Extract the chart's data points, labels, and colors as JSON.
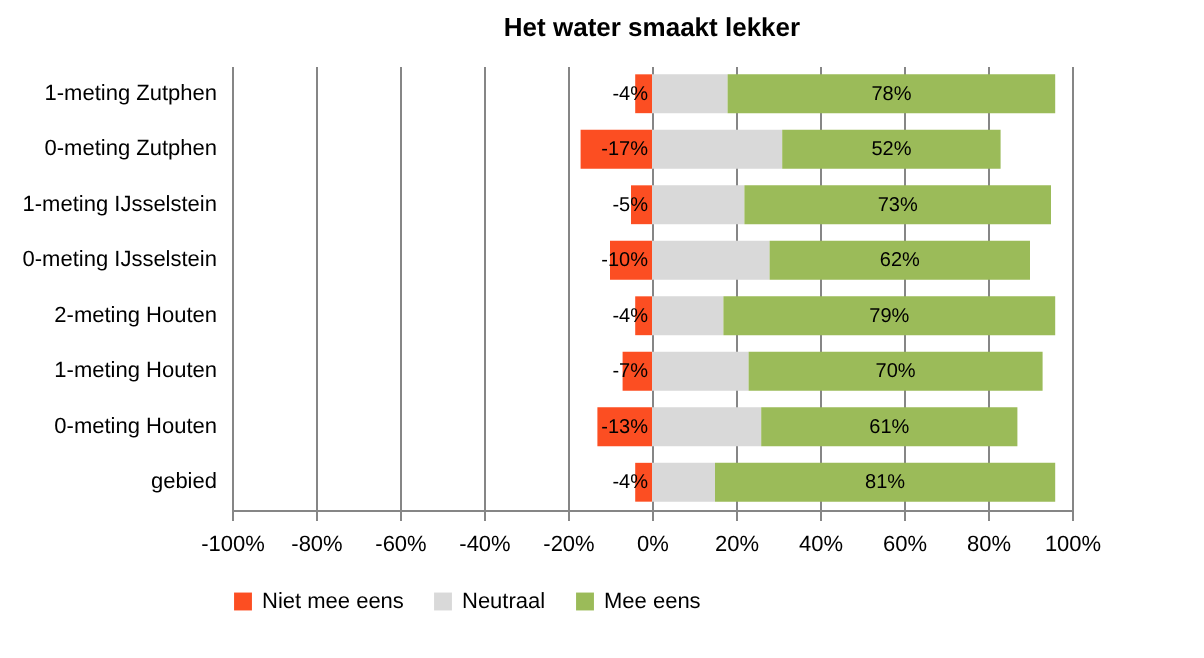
{
  "chart_data": {
    "type": "bar",
    "orientation": "horizontal",
    "stacked": true,
    "title": "Het water smaakt lekker",
    "categories": [
      "1-meting Zutphen",
      "0-meting Zutphen",
      "1-meting IJsselstein",
      "0-meting IJsselstein",
      "2-meting Houten",
      "1-meting Houten",
      "0-meting Houten",
      "gebied"
    ],
    "series": [
      {
        "name": "Niet mee eens",
        "color": "#fc4e22",
        "values": [
          -4,
          -17,
          -5,
          -10,
          -4,
          -7,
          -13,
          -4
        ],
        "value_labels": [
          "-4%",
          "-17%",
          "-5%",
          "-10%",
          "-4%",
          "-7%",
          "-13%",
          "-4%"
        ]
      },
      {
        "name": "Neutraal",
        "color": "#d9d9d9",
        "values": [
          18,
          31,
          22,
          28,
          17,
          23,
          26,
          15
        ]
      },
      {
        "name": "Mee eens",
        "color": "#9bbb59",
        "values": [
          78,
          52,
          73,
          62,
          79,
          70,
          61,
          81
        ],
        "value_labels": [
          "78%",
          "52%",
          "73%",
          "62%",
          "79%",
          "70%",
          "61%",
          "81%"
        ]
      }
    ],
    "xlim": [
      -100,
      100
    ],
    "xticks": [
      {
        "value": -100,
        "label": "-100%"
      },
      {
        "value": -80,
        "label": "-80%"
      },
      {
        "value": -60,
        "label": "-60%"
      },
      {
        "value": -40,
        "label": "-40%"
      },
      {
        "value": -20,
        "label": "-20%"
      },
      {
        "value": 0,
        "label": "0%"
      },
      {
        "value": 20,
        "label": "20%"
      },
      {
        "value": 40,
        "label": "40%"
      },
      {
        "value": 60,
        "label": "60%"
      },
      {
        "value": 80,
        "label": "80%"
      },
      {
        "value": 100,
        "label": "100%"
      }
    ],
    "grid": "x",
    "legend": "bottom"
  }
}
